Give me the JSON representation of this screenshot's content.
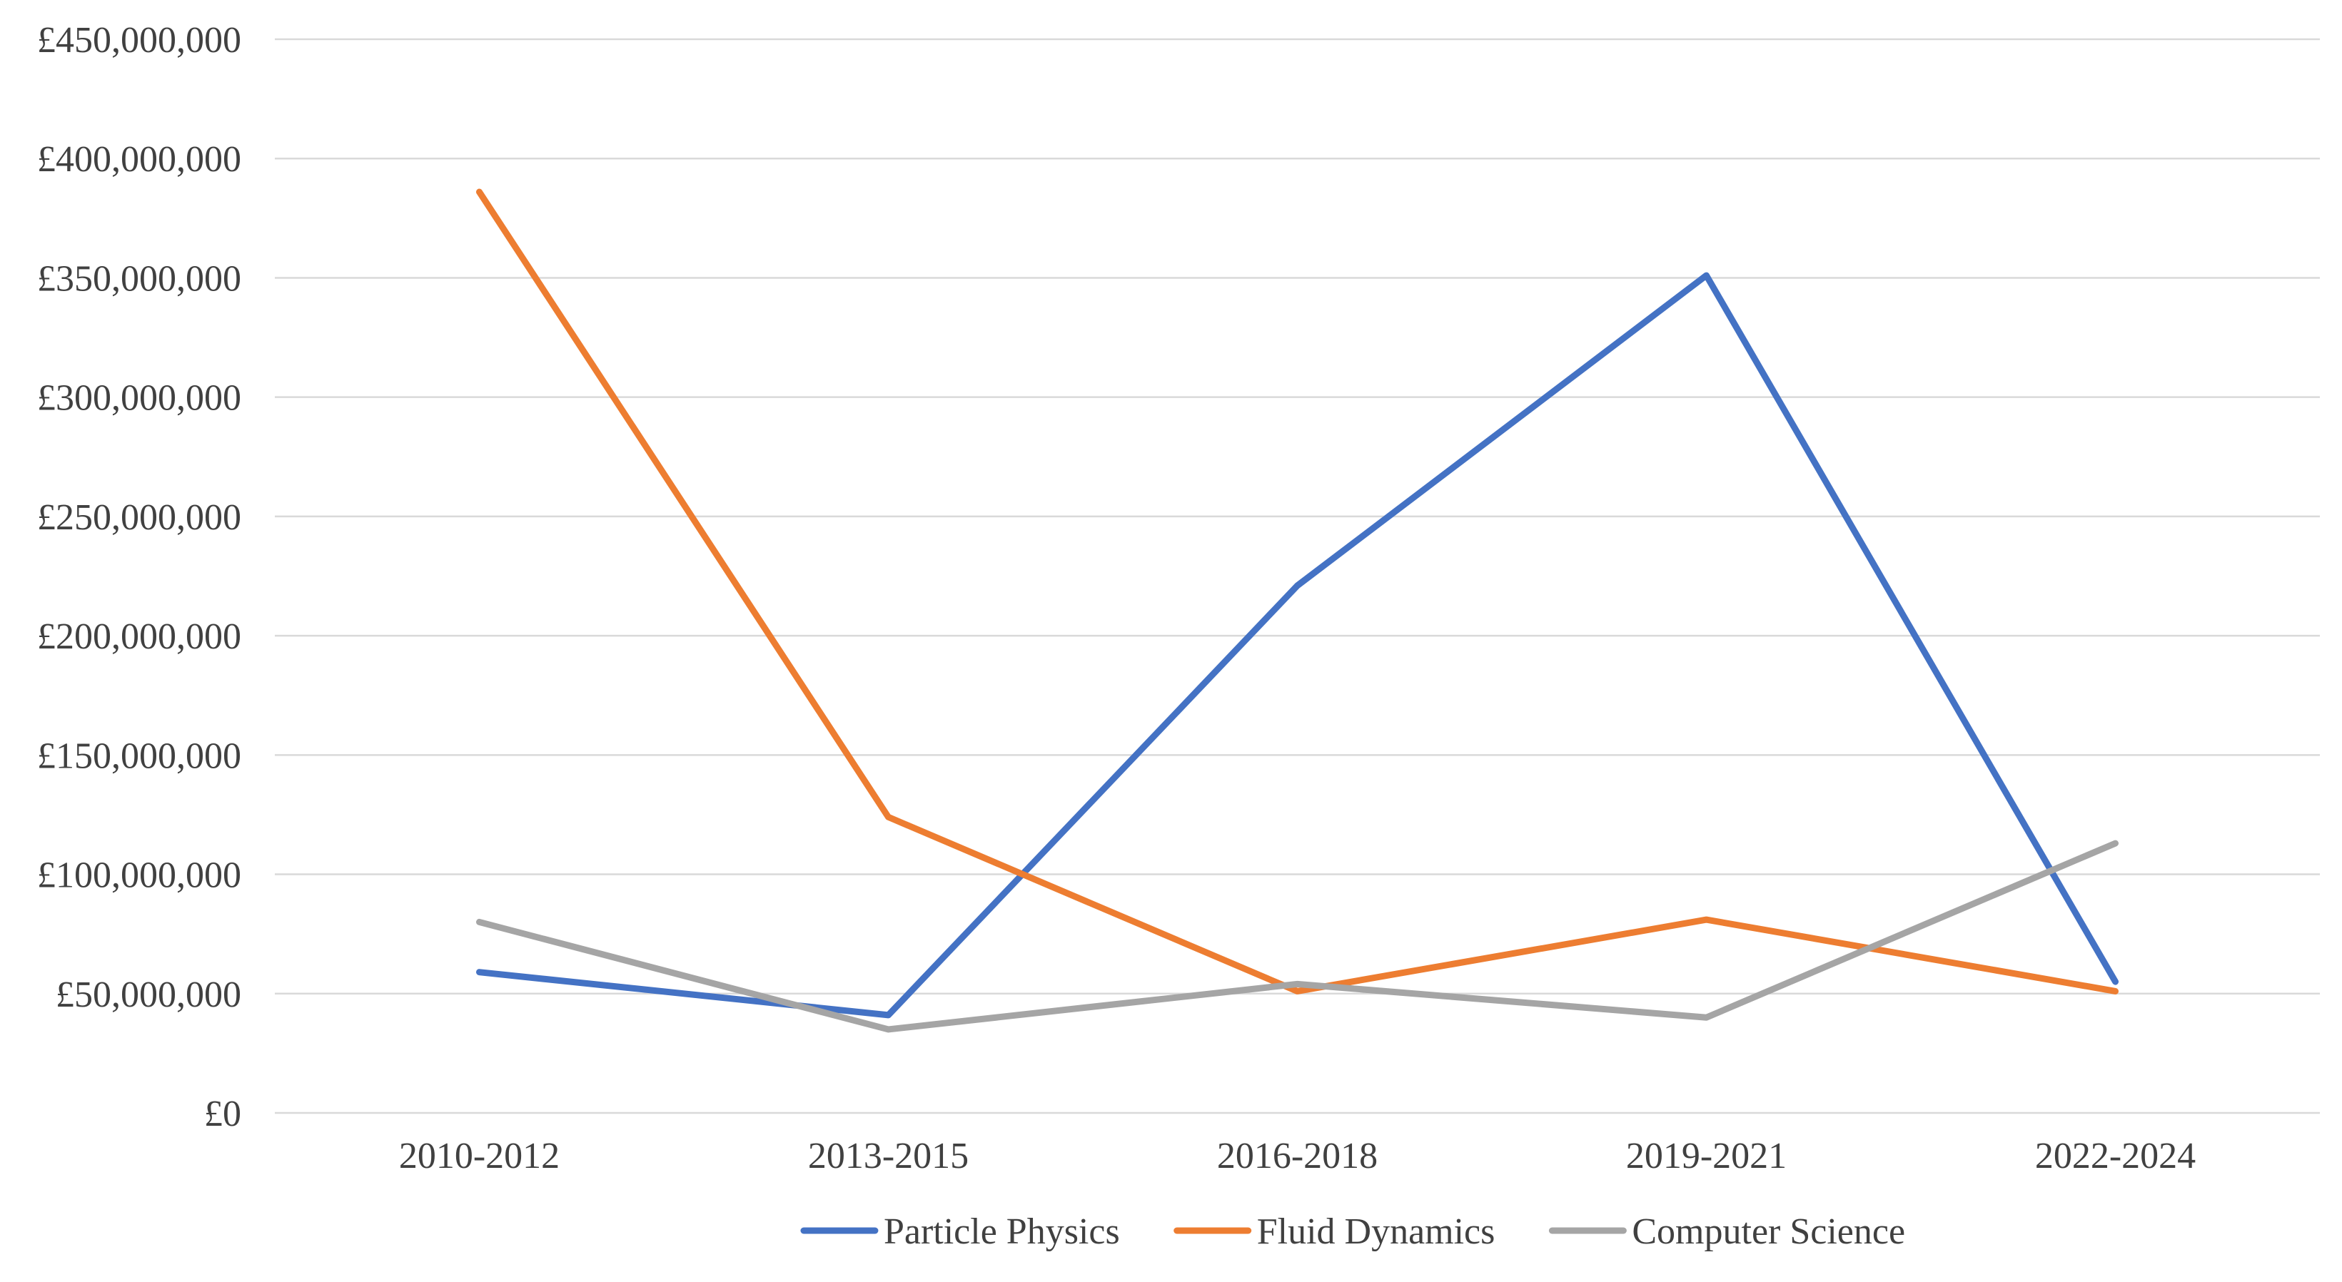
{
  "chart_data": {
    "type": "line",
    "title": "",
    "xlabel": "",
    "ylabel": "",
    "categories": [
      "2010-2012",
      "2013-2015",
      "2016-2018",
      "2019-2021",
      "2022-2024"
    ],
    "ylim": [
      0,
      450000000
    ],
    "y_ticks": [
      0,
      50000000,
      100000000,
      150000000,
      200000000,
      250000000,
      300000000,
      350000000,
      400000000,
      450000000
    ],
    "y_tick_labels": [
      "£0",
      "£50,000,000",
      "£100,000,000",
      "£150,000,000",
      "£200,000,000",
      "£250,000,000",
      "£300,000,000",
      "£350,000,000",
      "£400,000,000",
      "£450,000,000"
    ],
    "grid": true,
    "legend_position": "bottom",
    "series": [
      {
        "name": "Particle Physics",
        "color": "#4472C4",
        "values": [
          59000000,
          41000000,
          221000000,
          351000000,
          55000000
        ]
      },
      {
        "name": "Fluid Dynamics",
        "color": "#ED7D31",
        "values": [
          386000000,
          124000000,
          51000000,
          81000000,
          51000000
        ]
      },
      {
        "name": "Computer Science",
        "color": "#A5A5A5",
        "values": [
          80000000,
          35000000,
          54000000,
          40000000,
          113000000
        ]
      }
    ]
  }
}
